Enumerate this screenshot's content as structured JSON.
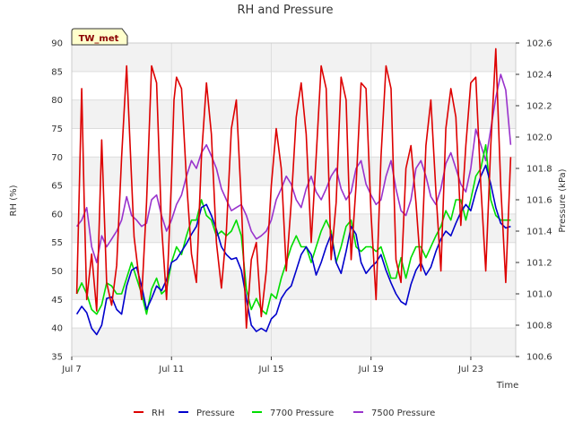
{
  "chart_data": {
    "type": "line",
    "title": "RH and Pressure",
    "badge": "TW_met",
    "xlabel": "Time",
    "ylabel_left": "RH (%)",
    "ylabel_right": "Pressure (kPa)",
    "x_range_days": [
      7,
      24.8
    ],
    "x_ticks": [
      {
        "day": 7,
        "label": "Jul 7"
      },
      {
        "day": 11,
        "label": "Jul 11"
      },
      {
        "day": 15,
        "label": "Jul 15"
      },
      {
        "day": 19,
        "label": "Jul 19"
      },
      {
        "day": 23,
        "label": "Jul 23"
      }
    ],
    "ylim_left": [
      35,
      90
    ],
    "y_ticks_left": [
      35,
      40,
      45,
      50,
      55,
      60,
      65,
      70,
      75,
      80,
      85,
      90
    ],
    "ylim_right": [
      100.6,
      102.6
    ],
    "y_ticks_right": [
      {
        "value": 100.6,
        "label": "100.6"
      },
      {
        "value": 100.8,
        "label": "100.8"
      },
      {
        "value": 101.0,
        "label": "101.0"
      },
      {
        "value": 101.2,
        "label": "101.2"
      },
      {
        "value": 101.4,
        "label": "101.4"
      },
      {
        "value": 101.6,
        "label": "101.6"
      },
      {
        "value": 101.8,
        "label": "101.8"
      },
      {
        "value": 102.0,
        "label": "102.0"
      },
      {
        "value": 102.2,
        "label": "102.2"
      },
      {
        "value": 102.4,
        "label": "102.4"
      },
      {
        "value": 102.6,
        "label": "102.6"
      }
    ],
    "grid": true,
    "legend_position": "bottom",
    "series": [
      {
        "name": "RH",
        "axis": "left",
        "color": "#dd0000",
        "x": [
          7.2,
          7.4,
          7.5,
          7.6,
          7.8,
          8.0,
          8.2,
          8.4,
          8.6,
          8.8,
          9.0,
          9.2,
          9.5,
          9.8,
          10.0,
          10.2,
          10.4,
          10.6,
          10.8,
          11.0,
          11.1,
          11.2,
          11.4,
          11.6,
          11.8,
          12.0,
          12.2,
          12.4,
          12.6,
          12.8,
          13.0,
          13.2,
          13.4,
          13.6,
          13.8,
          14.0,
          14.2,
          14.4,
          14.6,
          14.8,
          15.0,
          15.2,
          15.4,
          15.6,
          15.8,
          16.0,
          16.2,
          16.4,
          16.6,
          16.8,
          17.0,
          17.2,
          17.4,
          17.6,
          17.8,
          18.0,
          18.2,
          18.4,
          18.6,
          18.8,
          19.0,
          19.2,
          19.4,
          19.6,
          19.8,
          20.0,
          20.2,
          20.4,
          20.6,
          20.8,
          21.0,
          21.2,
          21.4,
          21.6,
          21.8,
          22.0,
          22.2,
          22.4,
          22.6,
          22.8,
          23.0,
          23.2,
          23.4,
          23.6,
          23.8,
          24.0,
          24.2,
          24.4,
          24.6
        ],
        "values": [
          46,
          82,
          62,
          45,
          53,
          43,
          73,
          48,
          44,
          51,
          70,
          86,
          56,
          45,
          62,
          86,
          83,
          58,
          45,
          66,
          80,
          84,
          82,
          66,
          53,
          48,
          70,
          83,
          74,
          55,
          47,
          57,
          75,
          80,
          62,
          40,
          52,
          55,
          42,
          50,
          65,
          75,
          68,
          50,
          62,
          77,
          83,
          74,
          55,
          70,
          86,
          82,
          52,
          62,
          84,
          80,
          52,
          65,
          83,
          82,
          60,
          45,
          70,
          86,
          82,
          52,
          48,
          68,
          72,
          62,
          50,
          72,
          80,
          64,
          50,
          75,
          82,
          77,
          58,
          72,
          83,
          84,
          65,
          50,
          72,
          89,
          65,
          48,
          70
        ]
      },
      {
        "name": "Pressure",
        "axis": "right",
        "color": "#0000cc",
        "x": [
          7.2,
          7.4,
          7.6,
          7.8,
          8.0,
          8.2,
          8.4,
          8.6,
          8.8,
          9.0,
          9.2,
          9.4,
          9.6,
          9.8,
          10.0,
          10.2,
          10.4,
          10.6,
          10.8,
          11.0,
          11.2,
          11.4,
          11.6,
          11.8,
          12.0,
          12.2,
          12.4,
          12.6,
          12.8,
          13.0,
          13.2,
          13.4,
          13.6,
          13.8,
          14.0,
          14.2,
          14.4,
          14.6,
          14.8,
          15.0,
          15.2,
          15.4,
          15.6,
          15.8,
          16.0,
          16.2,
          16.4,
          16.6,
          16.8,
          17.0,
          17.2,
          17.4,
          17.6,
          17.8,
          18.0,
          18.2,
          18.4,
          18.6,
          18.8,
          19.0,
          19.2,
          19.4,
          19.6,
          19.8,
          20.0,
          20.2,
          20.4,
          20.6,
          20.8,
          21.0,
          21.2,
          21.4,
          21.6,
          21.8,
          22.0,
          22.2,
          22.4,
          22.6,
          22.8,
          23.0,
          23.2,
          23.4,
          23.6,
          23.8,
          24.0,
          24.2,
          24.4,
          24.6
        ],
        "values": [
          100.87,
          100.92,
          100.88,
          100.78,
          100.74,
          100.8,
          100.97,
          100.98,
          100.9,
          100.87,
          101.05,
          101.15,
          101.17,
          101.05,
          100.9,
          100.97,
          101.05,
          101.02,
          101.09,
          101.2,
          101.22,
          101.27,
          101.32,
          101.38,
          101.43,
          101.55,
          101.57,
          101.5,
          101.41,
          101.3,
          101.25,
          101.22,
          101.23,
          101.15,
          100.97,
          100.8,
          100.76,
          100.78,
          100.76,
          100.84,
          100.87,
          100.97,
          101.02,
          101.05,
          101.15,
          101.25,
          101.3,
          101.25,
          101.12,
          101.2,
          101.3,
          101.38,
          101.2,
          101.13,
          101.27,
          101.43,
          101.38,
          101.2,
          101.13,
          101.17,
          101.2,
          101.25,
          101.15,
          101.07,
          101.0,
          100.95,
          100.93,
          101.06,
          101.15,
          101.2,
          101.12,
          101.17,
          101.27,
          101.35,
          101.4,
          101.37,
          101.45,
          101.52,
          101.57,
          101.53,
          101.65,
          101.75,
          101.82,
          101.7,
          101.55,
          101.45,
          101.42,
          101.43
        ]
      },
      {
        "name": "7700 Pressure",
        "axis": "right",
        "color": "#00dd00",
        "x": [
          7.2,
          7.4,
          7.6,
          7.8,
          8.0,
          8.2,
          8.4,
          8.6,
          8.8,
          9.0,
          9.2,
          9.4,
          9.6,
          9.8,
          10.0,
          10.2,
          10.4,
          10.6,
          10.8,
          11.0,
          11.2,
          11.4,
          11.6,
          11.8,
          12.0,
          12.2,
          12.4,
          12.6,
          12.8,
          13.0,
          13.2,
          13.4,
          13.6,
          13.8,
          14.0,
          14.2,
          14.4,
          14.6,
          14.8,
          15.0,
          15.2,
          15.4,
          15.6,
          15.8,
          16.0,
          16.2,
          16.4,
          16.6,
          16.8,
          17.0,
          17.2,
          17.4,
          17.6,
          17.8,
          18.0,
          18.2,
          18.4,
          18.6,
          18.8,
          19.0,
          19.2,
          19.4,
          19.6,
          19.8,
          20.0,
          20.2,
          20.4,
          20.6,
          20.8,
          21.0,
          21.2,
          21.4,
          21.6,
          21.8,
          22.0,
          22.2,
          22.4,
          22.6,
          22.8,
          23.0,
          23.2,
          23.4,
          23.6,
          23.8,
          24.0,
          24.2,
          24.4,
          24.6
        ],
        "values": [
          101.0,
          101.07,
          101.0,
          100.9,
          100.87,
          100.93,
          101.07,
          101.05,
          101.0,
          101.0,
          101.1,
          101.2,
          101.1,
          101.0,
          100.87,
          101.03,
          101.1,
          101.0,
          101.03,
          101.2,
          101.3,
          101.25,
          101.37,
          101.47,
          101.47,
          101.6,
          101.5,
          101.47,
          101.37,
          101.4,
          101.37,
          101.4,
          101.47,
          101.37,
          101.03,
          100.9,
          100.97,
          100.9,
          100.87,
          101.0,
          100.97,
          101.1,
          101.2,
          101.3,
          101.37,
          101.3,
          101.3,
          101.2,
          101.3,
          101.4,
          101.47,
          101.4,
          101.2,
          101.3,
          101.43,
          101.47,
          101.3,
          101.27,
          101.3,
          101.3,
          101.27,
          101.3,
          101.2,
          101.1,
          101.1,
          101.23,
          101.1,
          101.23,
          101.3,
          101.3,
          101.23,
          101.3,
          101.37,
          101.43,
          101.53,
          101.47,
          101.6,
          101.6,
          101.47,
          101.6,
          101.75,
          101.8,
          101.95,
          101.6,
          101.5,
          101.47,
          101.47,
          101.47
        ]
      },
      {
        "name": "7500 Pressure",
        "axis": "right",
        "color": "#9933cc",
        "x": [
          7.2,
          7.4,
          7.6,
          7.8,
          8.0,
          8.2,
          8.4,
          8.6,
          8.8,
          9.0,
          9.2,
          9.4,
          9.6,
          9.8,
          10.0,
          10.2,
          10.4,
          10.6,
          10.8,
          11.0,
          11.2,
          11.4,
          11.6,
          11.8,
          12.0,
          12.2,
          12.4,
          12.6,
          12.8,
          13.0,
          13.2,
          13.4,
          13.6,
          13.8,
          14.0,
          14.2,
          14.4,
          14.6,
          14.8,
          15.0,
          15.2,
          15.4,
          15.6,
          15.8,
          16.0,
          16.2,
          16.4,
          16.6,
          16.8,
          17.0,
          17.2,
          17.4,
          17.6,
          17.8,
          18.0,
          18.2,
          18.4,
          18.6,
          18.8,
          19.0,
          19.2,
          19.4,
          19.6,
          19.8,
          20.0,
          20.2,
          20.4,
          20.6,
          20.8,
          21.0,
          21.2,
          21.4,
          21.6,
          21.8,
          22.0,
          22.2,
          22.4,
          22.6,
          22.8,
          23.0,
          23.2,
          23.4,
          23.6,
          23.8,
          24.0,
          24.2,
          24.4,
          24.6
        ],
        "values": [
          101.43,
          101.47,
          101.55,
          101.3,
          101.2,
          101.37,
          101.3,
          101.35,
          101.4,
          101.47,
          101.62,
          101.5,
          101.47,
          101.43,
          101.45,
          101.6,
          101.63,
          101.5,
          101.4,
          101.47,
          101.57,
          101.63,
          101.75,
          101.85,
          101.8,
          101.9,
          101.95,
          101.88,
          101.8,
          101.67,
          101.6,
          101.53,
          101.55,
          101.57,
          101.5,
          101.4,
          101.35,
          101.37,
          101.4,
          101.47,
          101.6,
          101.67,
          101.75,
          101.7,
          101.6,
          101.55,
          101.67,
          101.75,
          101.65,
          101.6,
          101.67,
          101.75,
          101.8,
          101.67,
          101.6,
          101.65,
          101.8,
          101.85,
          101.7,
          101.63,
          101.57,
          101.6,
          101.75,
          101.85,
          101.67,
          101.53,
          101.5,
          101.6,
          101.8,
          101.85,
          101.75,
          101.62,
          101.57,
          101.67,
          101.83,
          101.9,
          101.8,
          101.7,
          101.65,
          101.8,
          102.05,
          101.95,
          101.85,
          102.05,
          102.25,
          102.4,
          102.3,
          101.95
        ]
      }
    ]
  }
}
